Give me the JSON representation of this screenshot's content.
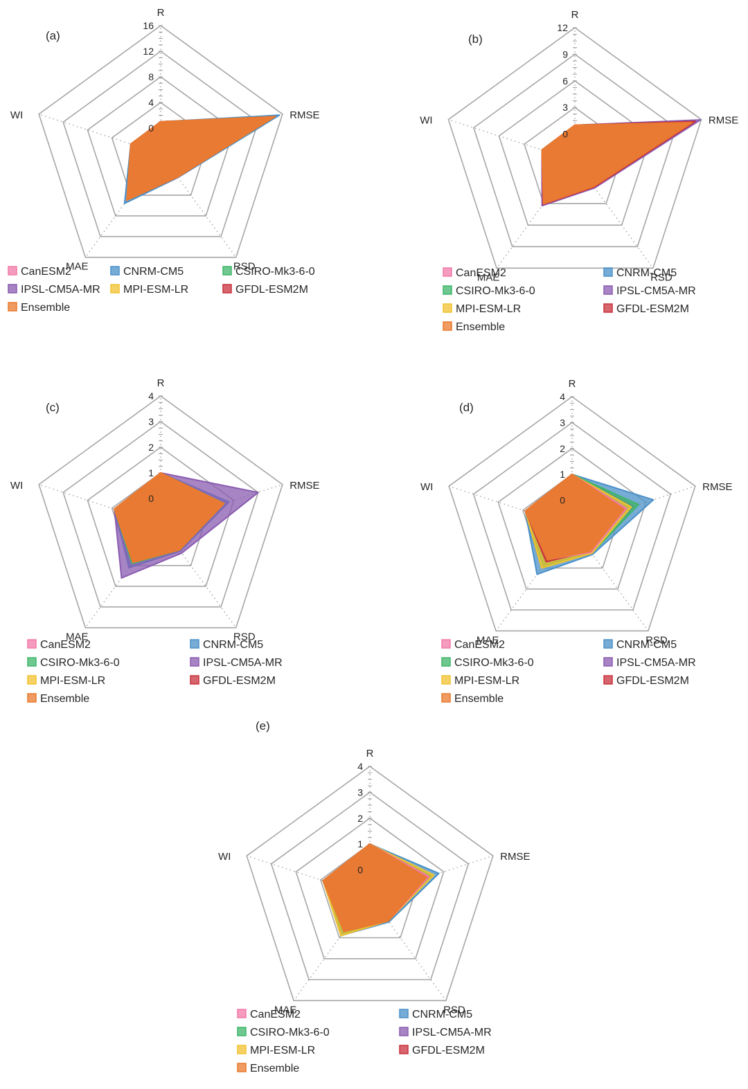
{
  "axes": [
    "R",
    "RMSE",
    "RSD",
    "MAE",
    "WI"
  ],
  "model_names": [
    "CanESM2",
    "CNRM-CM5",
    "CSIRO-Mk3-6-0",
    "IPSL-CM5A-MR",
    "MPI-ESM-LR",
    "GFDL-ESM2M",
    "Ensemble"
  ],
  "chart_data": [
    {
      "type": "radar",
      "panel": "(a)",
      "axes": [
        "R",
        "RMSE",
        "RSD",
        "MAE",
        "WI"
      ],
      "ticks": [
        0,
        4,
        8,
        12,
        16
      ],
      "tick_labels": [
        "0",
        "4",
        "8",
        "12",
        "16"
      ],
      "rlim": [
        -4,
        16
      ],
      "legend_order": [
        "CanESM2",
        "CNRM-CM5",
        "CSIRO-Mk3-6-0",
        "IPSL-CM5A-MR",
        "MPI-ESM-LR",
        "GFDL-ESM2M",
        "Ensemble"
      ],
      "legend_columns": 3,
      "series": [
        {
          "name": "CanESM2",
          "values": [
            1,
            14,
            0.5,
            4.5,
            0.9
          ]
        },
        {
          "name": "CNRM-CM5",
          "values": [
            1,
            15.5,
            0.6,
            5.6,
            0.9
          ]
        },
        {
          "name": "CSIRO-Mk3-6-0",
          "values": [
            1,
            14.2,
            0.5,
            4.6,
            0.9
          ]
        },
        {
          "name": "IPSL-CM5A-MR",
          "values": [
            1,
            14.5,
            0.55,
            4.8,
            0.9
          ]
        },
        {
          "name": "MPI-ESM-LR",
          "values": [
            1,
            14,
            0.5,
            4.4,
            0.9
          ]
        },
        {
          "name": "GFDL-ESM2M",
          "values": [
            1,
            14.3,
            0.5,
            4.6,
            0.9
          ]
        },
        {
          "name": "Ensemble",
          "values": [
            1,
            14.8,
            0.5,
            5.0,
            0.9
          ]
        }
      ]
    },
    {
      "type": "radar",
      "panel": "(b)",
      "axes": [
        "R",
        "RMSE",
        "RSD",
        "MAE",
        "WI"
      ],
      "ticks": [
        0,
        3,
        6,
        9,
        12
      ],
      "tick_labels": [
        "0",
        "3",
        "6",
        "9",
        "12"
      ],
      "rlim": [
        -3,
        12
      ],
      "legend_order": [
        "CanESM2",
        "CNRM-CM5",
        "CSIRO-Mk3-6-0",
        "IPSL-CM5A-MR",
        "MPI-ESM-LR",
        "GFDL-ESM2M",
        "Ensemble"
      ],
      "legend_columns": 2,
      "series": [
        {
          "name": "CanESM2",
          "values": [
            1,
            10.5,
            0.6,
            3.0,
            0.9
          ]
        },
        {
          "name": "CNRM-CM5",
          "values": [
            1,
            11,
            0.7,
            3.2,
            0.9
          ]
        },
        {
          "name": "CSIRO-Mk3-6-0",
          "values": [
            1,
            10.8,
            0.6,
            3.0,
            0.9
          ]
        },
        {
          "name": "IPSL-CM5A-MR",
          "values": [
            1,
            11.9,
            0.8,
            3.3,
            0.9
          ]
        },
        {
          "name": "MPI-ESM-LR",
          "values": [
            1,
            10.5,
            0.6,
            2.9,
            0.9
          ]
        },
        {
          "name": "GFDL-ESM2M",
          "values": [
            1,
            11.3,
            0.7,
            3.1,
            0.9
          ]
        },
        {
          "name": "Ensemble",
          "values": [
            1,
            10.9,
            0.6,
            3.0,
            0.9
          ]
        }
      ]
    },
    {
      "type": "radar",
      "panel": "(c)",
      "axes": [
        "R",
        "RMSE",
        "RSD",
        "MAE",
        "WI"
      ],
      "ticks": [
        0,
        1,
        2,
        3,
        4
      ],
      "tick_labels": [
        "0",
        "1",
        "2",
        "3",
        "4"
      ],
      "rlim": [
        -1,
        4
      ],
      "legend_order": [
        "CanESM2",
        "CNRM-CM5",
        "CSIRO-Mk3-6-0",
        "IPSL-CM5A-MR",
        "MPI-ESM-LR",
        "GFDL-ESM2M",
        "Ensemble"
      ],
      "legend_columns": 2,
      "series": [
        {
          "name": "CanESM2",
          "values": [
            1,
            1.5,
            0.2,
            0.8,
            0.9
          ]
        },
        {
          "name": "CNRM-CM5",
          "values": [
            1,
            1.8,
            0.3,
            1.1,
            0.9
          ]
        },
        {
          "name": "CSIRO-Mk3-6-0",
          "values": [
            1,
            1.6,
            0.25,
            0.9,
            0.9
          ]
        },
        {
          "name": "IPSL-CM5A-MR",
          "values": [
            1,
            3.0,
            0.4,
            1.6,
            0.9
          ]
        },
        {
          "name": "MPI-ESM-LR",
          "values": [
            1,
            1.4,
            0.2,
            0.7,
            0.9
          ]
        },
        {
          "name": "GFDL-ESM2M",
          "values": [
            1,
            1.5,
            0.2,
            0.8,
            0.9
          ]
        },
        {
          "name": "Ensemble",
          "values": [
            1,
            1.6,
            0.25,
            0.85,
            0.9
          ]
        }
      ]
    },
    {
      "type": "radar",
      "panel": "(d)",
      "axes": [
        "R",
        "RMSE",
        "RSD",
        "MAE",
        "WI"
      ],
      "ticks": [
        0,
        1,
        2,
        3,
        4
      ],
      "tick_labels": [
        "0",
        "1",
        "2",
        "3",
        "4"
      ],
      "rlim": [
        -1,
        4
      ],
      "legend_order": [
        "CanESM2",
        "CNRM-CM5",
        "CSIRO-Mk3-6-0",
        "IPSL-CM5A-MR",
        "MPI-ESM-LR",
        "GFDL-ESM2M",
        "Ensemble"
      ],
      "legend_columns": 2,
      "series": [
        {
          "name": "CanESM2",
          "values": [
            1,
            1.2,
            0.25,
            0.6,
            0.9
          ]
        },
        {
          "name": "CNRM-CM5",
          "values": [
            1,
            2.3,
            0.35,
            1.3,
            0.9
          ]
        },
        {
          "name": "CSIRO-Mk3-6-0",
          "values": [
            1,
            1.7,
            0.3,
            0.9,
            0.9
          ]
        },
        {
          "name": "IPSL-CM5A-MR",
          "values": [
            1,
            1.5,
            0.25,
            0.8,
            0.9
          ]
        },
        {
          "name": "MPI-ESM-LR",
          "values": [
            1,
            1.4,
            0.3,
            1.0,
            0.9
          ]
        },
        {
          "name": "GFDL-ESM2M",
          "values": [
            1,
            1.2,
            0.2,
            0.7,
            0.9
          ]
        },
        {
          "name": "Ensemble",
          "values": [
            1,
            1.1,
            0.2,
            0.6,
            0.9
          ]
        }
      ]
    },
    {
      "type": "radar",
      "panel": "(e)",
      "axes": [
        "R",
        "RMSE",
        "RSD",
        "MAE",
        "WI"
      ],
      "ticks": [
        0,
        1,
        2,
        3,
        4
      ],
      "tick_labels": [
        "0",
        "1",
        "2",
        "3",
        "4"
      ],
      "rlim": [
        -1,
        4
      ],
      "legend_order": [
        "CanESM2",
        "CNRM-CM5",
        "CSIRO-Mk3-6-0",
        "IPSL-CM5A-MR",
        "MPI-ESM-LR",
        "GFDL-ESM2M",
        "Ensemble"
      ],
      "legend_columns": 2,
      "series": [
        {
          "name": "CanESM2",
          "values": [
            1,
            1.4,
            0.2,
            0.7,
            0.9
          ]
        },
        {
          "name": "CNRM-CM5",
          "values": [
            1,
            1.8,
            0.25,
            0.9,
            0.9
          ]
        },
        {
          "name": "CSIRO-Mk3-6-0",
          "values": [
            1,
            1.5,
            0.2,
            0.8,
            0.9
          ]
        },
        {
          "name": "IPSL-CM5A-MR",
          "values": [
            1,
            1.4,
            0.2,
            0.75,
            0.9
          ]
        },
        {
          "name": "MPI-ESM-LR",
          "values": [
            1,
            1.6,
            0.2,
            0.9,
            0.9
          ]
        },
        {
          "name": "GFDL-ESM2M",
          "values": [
            1,
            1.4,
            0.2,
            0.7,
            0.9
          ]
        },
        {
          "name": "Ensemble",
          "values": [
            1,
            1.3,
            0.2,
            0.7,
            0.9
          ]
        }
      ]
    }
  ],
  "colors": {
    "CanESM2": "#f27aa8",
    "CNRM-CM5": "#4a90c8",
    "CSIRO-Mk3-6-0": "#3fb56a",
    "IPSL-CM5A-MR": "#8a5bb0",
    "MPI-ESM-LR": "#f2c230",
    "GFDL-ESM2M": "#c8323c",
    "Ensemble": "#e97a2e"
  },
  "draw_order": [
    "CNRM-CM5",
    "IPSL-CM5A-MR",
    "CSIRO-Mk3-6-0",
    "MPI-ESM-LR",
    "GFDL-ESM2M",
    "CanESM2",
    "Ensemble"
  ],
  "grid_color": "#a6a6a6"
}
